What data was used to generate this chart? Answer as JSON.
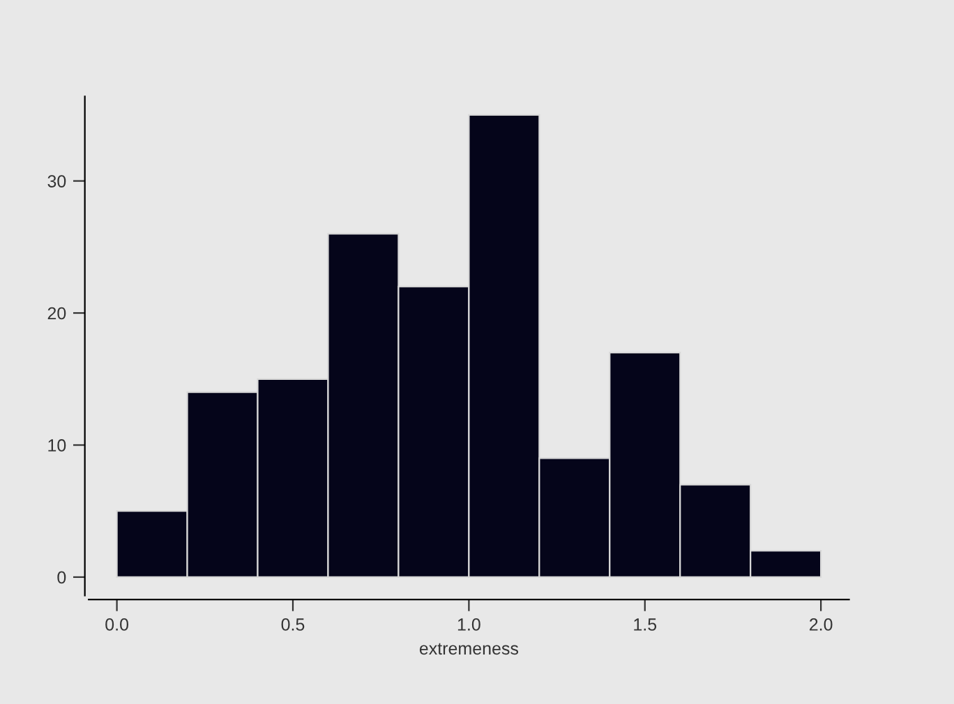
{
  "chart_data": {
    "type": "histogram",
    "xlabel": "extremeness",
    "bins": [
      0.0,
      0.2,
      0.4,
      0.6,
      0.8,
      1.0,
      1.2,
      1.4,
      1.6,
      1.8,
      2.0
    ],
    "values": [
      5,
      14,
      15,
      26,
      22,
      35,
      9,
      17,
      7,
      2
    ],
    "color": "#05051a",
    "xlim": [
      -0.08,
      2.08
    ],
    "ylim": [
      -1.4,
      36.4
    ],
    "xticks": [
      {
        "value": 0,
        "label": "0.0"
      },
      0.5,
      {
        "value": 1,
        "label": "1.0"
      },
      1.5,
      {
        "value": 2,
        "label": "2.0"
      }
    ],
    "yticks": [
      0,
      10,
      20,
      30
    ],
    "grid": false
  }
}
